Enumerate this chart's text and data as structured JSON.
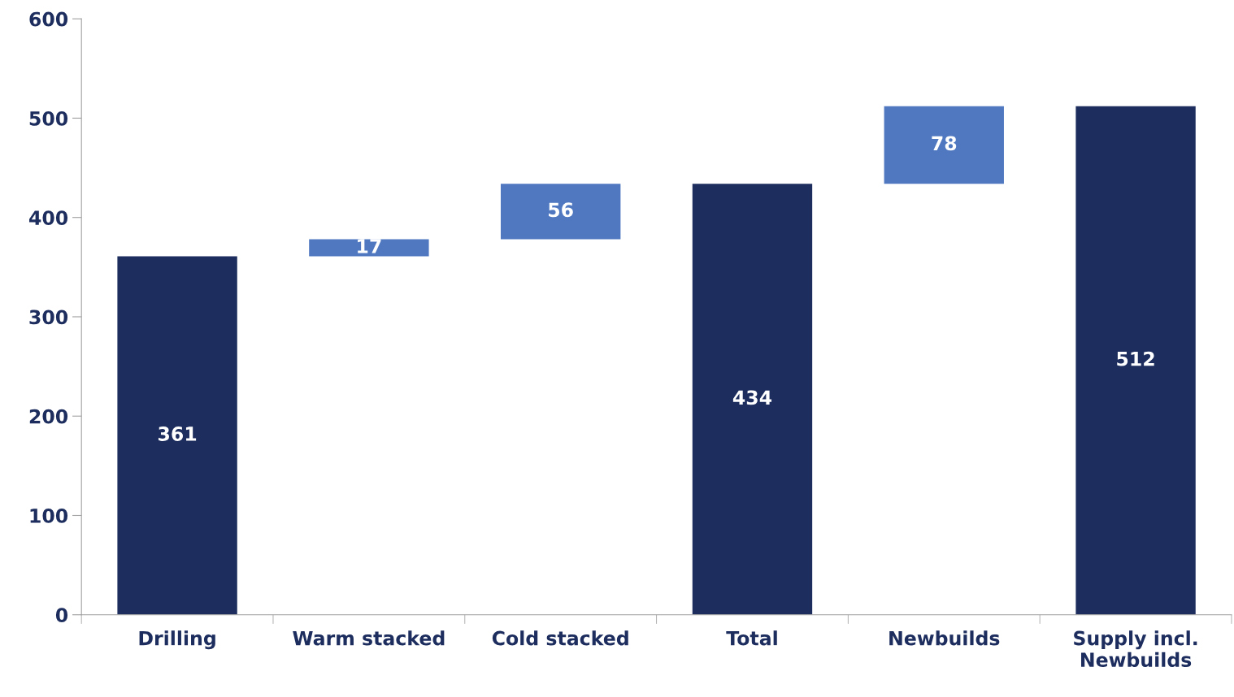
{
  "chart_data": {
    "type": "bar",
    "categories": [
      "Drilling",
      "Warm stacked",
      "Cold stacked",
      "Total",
      "Newbuilds",
      "Supply incl.\nNewbuilds"
    ],
    "values": [
      361,
      17,
      56,
      434,
      78,
      512
    ],
    "base": [
      0,
      361,
      378,
      0,
      434,
      0
    ],
    "colors": [
      "#1c2d5e",
      "#4f78c1",
      "#4f78c1",
      "#1c2d5e",
      "#4f78c1",
      "#1c2d5e"
    ],
    "data_labels": true,
    "ylim": [
      0,
      600
    ],
    "yticks": [
      0,
      100,
      200,
      300,
      400,
      500,
      600
    ],
    "grid": false,
    "legend": false
  }
}
